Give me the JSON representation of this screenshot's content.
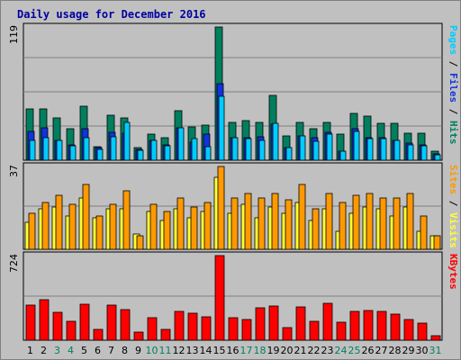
{
  "chart_data": {
    "type": "bar",
    "title": "Daily usage for December 2016",
    "days": [
      "1",
      "2",
      "3",
      "4",
      "5",
      "6",
      "7",
      "8",
      "9",
      "10",
      "11",
      "12",
      "13",
      "14",
      "15",
      "16",
      "17",
      "18",
      "19",
      "20",
      "21",
      "22",
      "23",
      "24",
      "25",
      "26",
      "27",
      "28",
      "29",
      "30",
      "31"
    ],
    "weekend_days": [
      "3",
      "4",
      "10",
      "11",
      "17",
      "18",
      "24",
      "25",
      "31"
    ],
    "colors": {
      "hits": "#007f5f",
      "files": "#1133dd",
      "pages": "#00ccff",
      "visits": "#ff9900",
      "sites": "#ffff33",
      "kbytes": "#ff0000",
      "weekday_label": "#000000",
      "weekend_label": "#00805f",
      "plot_bg": "#c0c0c0",
      "grid": "#808080"
    },
    "panels": [
      {
        "id": "hits-files-pages",
        "max_label": "119",
        "max": 119,
        "side_label": [
          {
            "text": "Pages",
            "color": "#00ccff"
          },
          {
            "text": " / ",
            "color": "#000000"
          },
          {
            "text": "Files",
            "color": "#1133dd"
          },
          {
            "text": " / ",
            "color": "#000000"
          },
          {
            "text": "Hits",
            "color": "#007f5f"
          }
        ],
        "series": [
          {
            "name": "Hits",
            "color": "#007f5f",
            "values": [
              46,
              46,
              38,
              28,
              48,
              12,
              40,
              38,
              11,
              23,
              20,
              44,
              30,
              31,
              119,
              34,
              35,
              34,
              58,
              22,
              34,
              28,
              34,
              23,
              42,
              39,
              33,
              33,
              24,
              24,
              8
            ]
          },
          {
            "name": "Files",
            "color": "#1133dd",
            "values": [
              26,
              29,
              18,
              14,
              28,
              11,
              25,
              24,
              10,
              18,
              14,
              29,
              16,
              23,
              68,
              20,
              20,
              21,
              32,
              11,
              22,
              20,
              25,
              8,
              28,
              20,
              20,
              18,
              15,
              14,
              6
            ]
          },
          {
            "name": "Pages",
            "color": "#00ccff",
            "values": [
              18,
              20,
              18,
              13,
              20,
              10,
              21,
              34,
              9,
              18,
              13,
              29,
              19,
              12,
              57,
              20,
              19,
              18,
              33,
              11,
              22,
              17,
              23,
              8,
              26,
              19,
              19,
              18,
              14,
              13,
              5
            ]
          }
        ]
      },
      {
        "id": "visits-sites",
        "max_label": "37",
        "max": 37,
        "side_label": [
          {
            "text": "Sites",
            "color": "#ff9900"
          },
          {
            "text": " / ",
            "color": "#000000"
          },
          {
            "text": "Visits",
            "color": "#ffff33"
          }
        ],
        "series": [
          {
            "name": "Visits",
            "color": "#ffff33",
            "values": [
              12,
              18,
              19,
              15,
              23,
              14,
              18,
              18,
              7,
              17,
              13,
              18,
              14,
              17,
              32,
              16,
              20,
              14,
              19,
              16,
              21,
              13,
              18,
              8,
              16,
              19,
              18,
              15,
              19,
              8,
              6
            ]
          },
          {
            "name": "Sites",
            "color": "#ff9900",
            "values": [
              16,
              21,
              24,
              20,
              29,
              15,
              20,
              26,
              6,
              20,
              17,
              23,
              19,
              21,
              37,
              23,
              25,
              23,
              25,
              22,
              29,
              18,
              25,
              21,
              24,
              25,
              23,
              23,
              25,
              15,
              6
            ]
          }
        ]
      },
      {
        "id": "kbytes",
        "max_label": "724",
        "max": 724,
        "side_label": [
          {
            "text": "KBytes",
            "color": "#ff0000"
          }
        ],
        "series": [
          {
            "name": "KBytes",
            "color": "#ff0000",
            "values": [
              300,
              345,
              240,
              160,
              310,
              95,
              300,
              260,
              70,
              190,
              95,
              250,
              230,
              200,
              724,
              190,
              180,
              280,
              290,
              110,
              285,
              160,
              315,
              155,
              245,
              255,
              245,
              220,
              180,
              150,
              40
            ]
          }
        ]
      }
    ]
  }
}
